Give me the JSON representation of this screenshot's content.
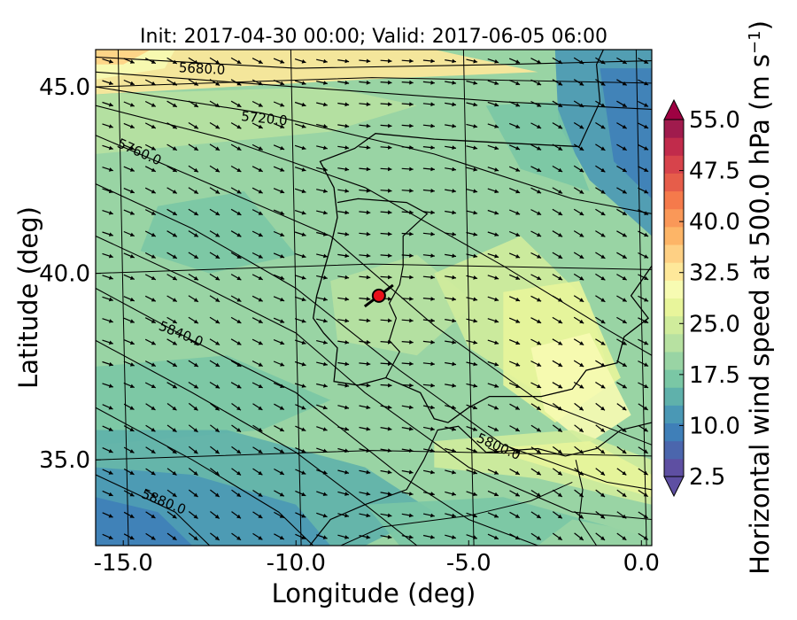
{
  "chart_data": {
    "type": "heatmap",
    "title": "Init: 2017-04-30 00:00; Valid: 2017-06-05 06:00",
    "xlabel": "Longitude (deg)",
    "ylabel": "Latitude (deg)",
    "xlim": [
      -15.8,
      0.3
    ],
    "ylim": [
      32.7,
      46.0
    ],
    "x_ticks": [
      {
        "value": -15,
        "label": "-15.0"
      },
      {
        "value": -10,
        "label": "-10.0"
      },
      {
        "value": -5,
        "label": "-5.0"
      },
      {
        "value": 0,
        "label": "0.0"
      }
    ],
    "y_ticks": [
      {
        "value": 45,
        "label": "45.0"
      },
      {
        "value": 40,
        "label": "40.0"
      },
      {
        "value": 35,
        "label": "35.0"
      }
    ],
    "colorbar": {
      "label": "Horizontal wind speed at 500.0 hPa (m s",
      "label_sup": "−1",
      "label_end": ")",
      "vmin": 2.5,
      "vmax": 55.0,
      "extend": "both",
      "tick_labels": [
        {
          "value": 55.0,
          "label": "55.0"
        },
        {
          "value": 47.5,
          "label": "47.5"
        },
        {
          "value": 40.0,
          "label": "40.0"
        },
        {
          "value": 32.5,
          "label": "32.5"
        },
        {
          "value": 25.0,
          "label": "25.0"
        },
        {
          "value": 17.5,
          "label": "17.5"
        },
        {
          "value": 10.0,
          "label": "10.0"
        },
        {
          "value": 2.5,
          "label": "2.5"
        }
      ],
      "colors": [
        "#5e4fa2",
        "#4b66ad",
        "#3f7fb8",
        "#4a98b5",
        "#5fb1ab",
        "#7ac7a5",
        "#99d4a4",
        "#b7e1a1",
        "#d0ec9c",
        "#e8f59b",
        "#f7fbb2",
        "#fee89a",
        "#fed084",
        "#fdb567",
        "#fa9858",
        "#f57a4b",
        "#e65d4a",
        "#d7434b",
        "#c12b4b",
        "#a01b4d"
      ],
      "under_color": "#5e4fa2",
      "over_color": "#9e0142"
    },
    "contours": [
      {
        "level": 5680,
        "label": "5680.0"
      },
      {
        "level": 5720,
        "label": "5720.0"
      },
      {
        "level": 5760,
        "label": "5760.0"
      },
      {
        "level": 5800,
        "label": "5800.0"
      },
      {
        "level": 5840,
        "label": "5840.0"
      },
      {
        "level": 5880,
        "label": "5880.0"
      }
    ],
    "wind_vectors": {
      "direction": "north-westerly to south-easterly",
      "grid": "regular"
    },
    "marker": {
      "lon": -7.6,
      "lat": 39.4,
      "color": "#e8111a"
    }
  }
}
